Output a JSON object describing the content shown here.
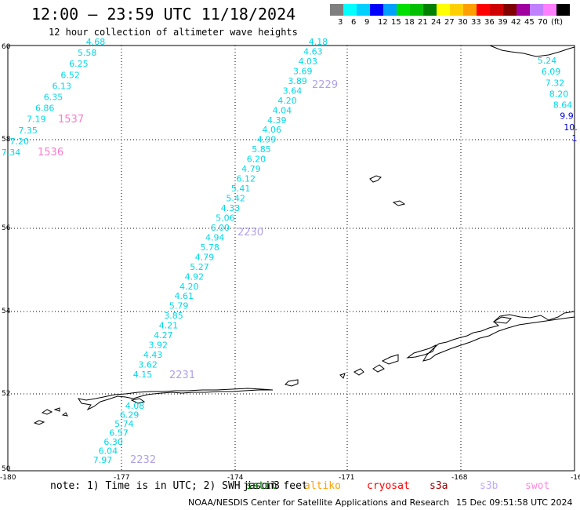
{
  "header": {
    "title": "12:00 – 23:59 UTC 11/18/2024",
    "subtitle": "12 hour collection of altimeter wave heights"
  },
  "legend": {
    "colors": [
      "#7f7f7f",
      "#00ffff",
      "#00d0ff",
      "#0000ff",
      "#00a0ff",
      "#00e000",
      "#00c000",
      "#008000",
      "#ffff00",
      "#ffd000",
      "#ffa000",
      "#ff0000",
      "#d00000",
      "#800000",
      "#a000a0",
      "#c080ff",
      "#ff80ff",
      "#000000"
    ],
    "labels": [
      "3",
      "6",
      "9",
      "12",
      "15",
      "18",
      "21",
      "24",
      "27",
      "30",
      "33",
      "36",
      "39",
      "42",
      "45",
      "70",
      "(ft)"
    ]
  },
  "map": {
    "lat_labels": [
      "60",
      "58",
      "56",
      "54",
      "52",
      "50"
    ],
    "lon_labels": [
      "-180",
      "-177",
      "-174",
      "-171",
      "-168",
      "-16"
    ],
    "tracks": [
      {
        "color": "#00d8e8",
        "values": [
          "4.68",
          "5.58",
          "6.25",
          "6.52",
          "6.13",
          "6.35",
          "6.86",
          "7.19",
          "7.35",
          "7.20",
          "7.34"
        ],
        "labels": [
          {
            "text": "1537",
            "color": "#ff77cc"
          },
          {
            "text": "1536",
            "color": "#ff77cc"
          }
        ]
      },
      {
        "color": "#00d8e8",
        "values": [
          "4.18",
          "4.63",
          "4.03",
          "3.69",
          "3.89",
          "3.64",
          "4.20",
          "4.04",
          "4.39",
          "4.06",
          "4.99",
          "5.85",
          "6.20",
          "4.79",
          "6.12",
          "5.41",
          "5.42",
          "4.33",
          "5.06",
          "6.00",
          "4.94",
          "5.78",
          "4.79",
          "5.27",
          "4.92",
          "4.20",
          "4.61",
          "5.79",
          "3.85",
          "4.21",
          "4.27",
          "3.92",
          "4.43",
          "3.62",
          "4.15"
        ],
        "labels": [
          {
            "text": "2229",
            "color": "#b0a0e8"
          },
          {
            "text": "2230",
            "color": "#b0a0e8"
          },
          {
            "text": "2231",
            "color": "#b0a0e8"
          }
        ]
      },
      {
        "color": "#00d8e8",
        "values": [
          "4.08",
          "6.29",
          "5.74",
          "6.57",
          "6.30",
          "6.04",
          "7.97"
        ],
        "labels": [
          {
            "text": "2232",
            "color": "#b0a0e8"
          }
        ]
      },
      {
        "color": "#00d8e8",
        "values": [
          "5.24",
          "6.09",
          "7.32",
          "8.20",
          "8.64",
          "9.9",
          "10.",
          "1"
        ],
        "value_colors": [
          "#00d8e8",
          "#00d8e8",
          "#00d8e8",
          "#00d8e8",
          "#00d8e8",
          "#0000cc",
          "#0000cc",
          "#0000cc"
        ],
        "labels": []
      }
    ]
  },
  "footer": {
    "note": "note: 1) Time is in UTC; 2) SWH is in feet",
    "satellites": [
      {
        "name": "jason3",
        "color": "#000000"
      },
      {
        "name": "sntnl",
        "color": "#008000"
      },
      {
        "name": "altiko",
        "color": "#ffa000"
      },
      {
        "name": "cryosat",
        "color": "#ff0000"
      },
      {
        "name": "s3a",
        "color": "#a00000"
      },
      {
        "name": "s3b",
        "color": "#c0a8ff"
      },
      {
        "name": "swot",
        "color": "#ff88dd"
      }
    ],
    "credit": "NOAA/NESDIS Center for Satellite Applications and Research",
    "timestamp": "15 Dec 09:51:58 UTC 2024"
  }
}
